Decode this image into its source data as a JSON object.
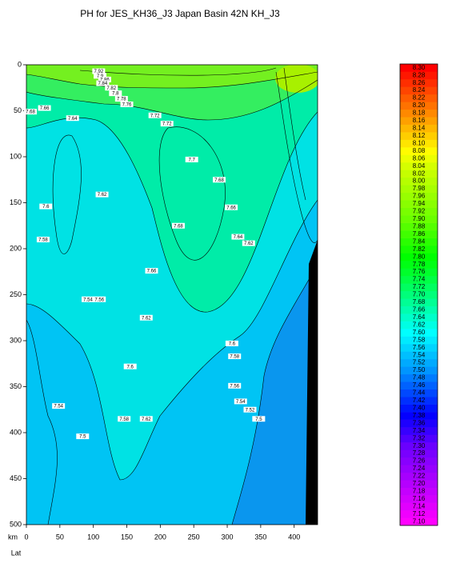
{
  "chart_data": {
    "type": "contour",
    "title": "PH for JES_KH36_J3 Japan Basin 42N KH_J3",
    "xlabel": "km",
    "x2label": "Lat",
    "xlim": [
      0,
      435
    ],
    "xticks": [
      0,
      50,
      100,
      150,
      200,
      250,
      300,
      350,
      400
    ],
    "ylim": [
      0,
      500
    ],
    "yticks": [
      0,
      50,
      100,
      150,
      200,
      250,
      300,
      350,
      400,
      450,
      500
    ],
    "y_inverted": true,
    "contour_labels": [
      {
        "value": 7.92,
        "x": 108,
        "y": 7
      },
      {
        "value": 7.9,
        "x": 110,
        "y": 12
      },
      {
        "value": 7.86,
        "x": 117,
        "y": 16
      },
      {
        "value": 7.84,
        "x": 114,
        "y": 20
      },
      {
        "value": 7.82,
        "x": 127,
        "y": 25
      },
      {
        "value": 7.8,
        "x": 133,
        "y": 31
      },
      {
        "value": 7.78,
        "x": 142,
        "y": 37
      },
      {
        "value": 7.76,
        "x": 150,
        "y": 43
      },
      {
        "value": 7.66,
        "x": 27,
        "y": 47
      },
      {
        "value": 7.68,
        "x": 6,
        "y": 51
      },
      {
        "value": 7.64,
        "x": 69,
        "y": 58
      },
      {
        "value": 7.72,
        "x": 192,
        "y": 55
      },
      {
        "value": 7.72,
        "x": 210,
        "y": 64
      },
      {
        "value": 7.7,
        "x": 247,
        "y": 103
      },
      {
        "value": 7.68,
        "x": 288,
        "y": 125
      },
      {
        "value": 7.62,
        "x": 113,
        "y": 141
      },
      {
        "value": 7.6,
        "x": 29,
        "y": 154
      },
      {
        "value": 7.66,
        "x": 306,
        "y": 155
      },
      {
        "value": 7.68,
        "x": 227,
        "y": 175
      },
      {
        "value": 7.64,
        "x": 316,
        "y": 187
      },
      {
        "value": 7.62,
        "x": 332,
        "y": 194
      },
      {
        "value": 7.58,
        "x": 25,
        "y": 190
      },
      {
        "value": 7.66,
        "x": 187,
        "y": 224
      },
      {
        "value": 7.54,
        "x": 92,
        "y": 255
      },
      {
        "value": 7.56,
        "x": 109,
        "y": 255
      },
      {
        "value": 7.62,
        "x": 179,
        "y": 275
      },
      {
        "value": 7.6,
        "x": 307,
        "y": 303
      },
      {
        "value": 7.58,
        "x": 311,
        "y": 317
      },
      {
        "value": 7.6,
        "x": 155,
        "y": 328
      },
      {
        "value": 7.56,
        "x": 311,
        "y": 349
      },
      {
        "value": 7.54,
        "x": 320,
        "y": 366
      },
      {
        "value": 7.52,
        "x": 334,
        "y": 375
      },
      {
        "value": 7.5,
        "x": 347,
        "y": 385
      },
      {
        "value": 7.54,
        "x": 48,
        "y": 371
      },
      {
        "value": 7.58,
        "x": 146,
        "y": 385
      },
      {
        "value": 7.62,
        "x": 179,
        "y": 385
      },
      {
        "value": 7.5,
        "x": 84,
        "y": 404
      }
    ],
    "colorbar": {
      "ticks": [
        {
          "value": 7.1,
          "label": "7.10"
        },
        {
          "value": 7.12,
          "label": "7.12"
        },
        {
          "value": 7.14,
          "label": "7.14"
        },
        {
          "value": 7.16,
          "label": "7.16"
        },
        {
          "value": 7.18,
          "label": "7.18"
        },
        {
          "value": 7.2,
          "label": "7.20"
        },
        {
          "value": 7.22,
          "label": "7.22"
        },
        {
          "value": 7.24,
          "label": "7.24"
        },
        {
          "value": 7.26,
          "label": "7.26"
        },
        {
          "value": 7.28,
          "label": "7.28"
        },
        {
          "value": 7.3,
          "label": "7.30"
        },
        {
          "value": 7.32,
          "label": "7.32"
        },
        {
          "value": 7.34,
          "label": "7.34"
        },
        {
          "value": 7.36,
          "label": "7.36"
        },
        {
          "value": 7.38,
          "label": "7.38"
        },
        {
          "value": 7.4,
          "label": "7.40"
        },
        {
          "value": 7.42,
          "label": "7.42"
        },
        {
          "value": 7.44,
          "label": "7.44"
        },
        {
          "value": 7.46,
          "label": "7.46"
        },
        {
          "value": 7.48,
          "label": "7.48"
        },
        {
          "value": 7.5,
          "label": "7.50"
        },
        {
          "value": 7.52,
          "label": "7.52"
        },
        {
          "value": 7.54,
          "label": "7.54"
        },
        {
          "value": 7.56,
          "label": "7.56"
        },
        {
          "value": 7.58,
          "label": "7.58"
        },
        {
          "value": 7.6,
          "label": "7.60"
        },
        {
          "value": 7.62,
          "label": "7.62"
        },
        {
          "value": 7.64,
          "label": "7.64"
        },
        {
          "value": 7.66,
          "label": "7.66"
        },
        {
          "value": 7.68,
          "label": "7.68"
        },
        {
          "value": 7.7,
          "label": "7.70"
        },
        {
          "value": 7.72,
          "label": "7.72"
        },
        {
          "value": 7.74,
          "label": "7.74"
        },
        {
          "value": 7.76,
          "label": "7.76"
        },
        {
          "value": 7.78,
          "label": "7.78"
        },
        {
          "value": 7.8,
          "label": "7.80"
        },
        {
          "value": 7.82,
          "label": "7.82"
        },
        {
          "value": 7.84,
          "label": "7.84"
        },
        {
          "value": 7.86,
          "label": "7.86"
        },
        {
          "value": 7.88,
          "label": "7.88"
        },
        {
          "value": 7.9,
          "label": "7.90"
        },
        {
          "value": 7.92,
          "label": "7.92"
        },
        {
          "value": 7.94,
          "label": "7.94"
        },
        {
          "value": 7.96,
          "label": "7.96"
        },
        {
          "value": 7.98,
          "label": "7.98"
        },
        {
          "value": 8,
          "label": "8.00"
        },
        {
          "value": 8.02,
          "label": "8.02"
        },
        {
          "value": 8.04,
          "label": "8.04"
        },
        {
          "value": 8.06,
          "label": "8.06"
        },
        {
          "value": 8.08,
          "label": "8.08"
        },
        {
          "value": 8.1,
          "label": "8.10"
        },
        {
          "value": 8.12,
          "label": "8.12"
        },
        {
          "value": 8.14,
          "label": "8.14"
        },
        {
          "value": 8.16,
          "label": "8.16"
        },
        {
          "value": 8.18,
          "label": "8.18"
        },
        {
          "value": 8.2,
          "label": "8.20"
        },
        {
          "value": 8.22,
          "label": "8.22"
        },
        {
          "value": 8.24,
          "label": "8.24"
        },
        {
          "value": 8.26,
          "label": "8.26"
        },
        {
          "value": 8.28,
          "label": "8.28"
        },
        {
          "value": 8.3,
          "label": "8.30"
        }
      ]
    }
  }
}
